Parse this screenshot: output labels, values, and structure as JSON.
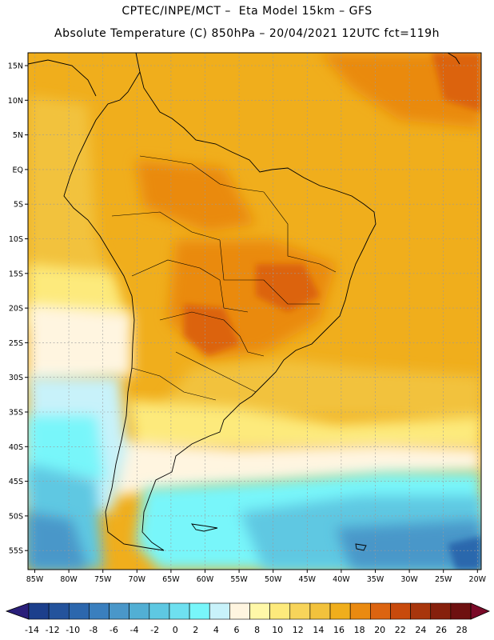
{
  "header": {
    "line1": "CPTEC/INPE/MCT –  Eta Model 15km – GFS",
    "line2": "Absolute Temperature (C) 850hPa – 20/04/2021 12UTC fct=119h"
  },
  "map": {
    "lat_labels": [
      "15N",
      "10N",
      "5N",
      "EQ",
      "5S",
      "10S",
      "15S",
      "20S",
      "25S",
      "30S",
      "35S",
      "40S",
      "45S",
      "50S",
      "55S"
    ],
    "lon_labels": [
      "85W",
      "80W",
      "75W",
      "70W",
      "65W",
      "60W",
      "55W",
      "50W",
      "45W",
      "40W",
      "35W",
      "30W",
      "25W",
      "20W"
    ]
  },
  "colorbar": {
    "labels": [
      "-14",
      "-12",
      "-10",
      "-8",
      "-6",
      "-4",
      "-2",
      "0",
      "2",
      "4",
      "6",
      "8",
      "10",
      "12",
      "14",
      "16",
      "18",
      "20",
      "22",
      "24",
      "26",
      "28"
    ],
    "colors": [
      "#1c3f8c",
      "#24539c",
      "#2c67ad",
      "#3a7fbe",
      "#4a97c9",
      "#52afd4",
      "#5ec8e2",
      "#6ee0f0",
      "#78f6fa",
      "#c8f2fa",
      "#fff5e0",
      "#fff8a8",
      "#fdea7c",
      "#f7d45a",
      "#f2c23c",
      "#f0ae1c",
      "#ea8a10",
      "#dc6410",
      "#c84a0c",
      "#a8360c",
      "#86200c",
      "#6e1010"
    ]
  }
}
